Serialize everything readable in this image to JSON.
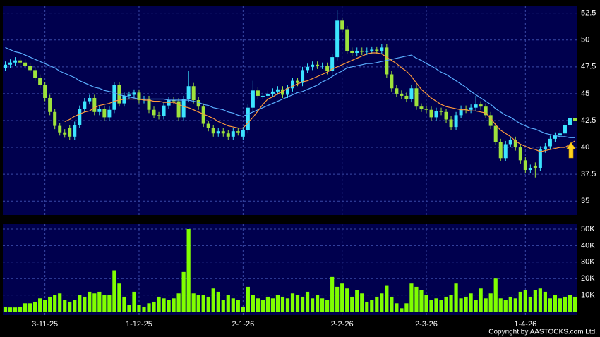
{
  "copyright": "Copyright by AASTOCKS.com Ltd.",
  "chart_data": [
    {
      "type": "candlestick",
      "categories": [
        null,
        null,
        null,
        null,
        null,
        null,
        null,
        null,
        "3-11-25",
        null,
        null,
        null,
        null,
        null,
        null,
        null,
        null,
        null,
        null,
        null,
        null,
        null,
        null,
        null,
        null,
        null,
        null,
        "1-12-25",
        null,
        null,
        null,
        null,
        null,
        null,
        null,
        null,
        null,
        null,
        null,
        null,
        null,
        null,
        null,
        null,
        null,
        null,
        null,
        null,
        "2-1-26",
        null,
        null,
        null,
        null,
        null,
        null,
        null,
        null,
        null,
        null,
        null,
        null,
        null,
        null,
        null,
        null,
        null,
        null,
        null,
        "2-2-26",
        null,
        null,
        null,
        null,
        null,
        null,
        null,
        null,
        null,
        null,
        null,
        null,
        null,
        null,
        null,
        null,
        "2-3-26",
        null,
        null,
        null,
        null,
        null,
        null,
        null,
        null,
        null,
        null,
        null,
        null,
        null,
        null,
        null,
        null,
        null,
        null,
        null,
        "1-4-26",
        null,
        null,
        null,
        null,
        null,
        null,
        null,
        null,
        null,
        null
      ],
      "open": [
        47.4,
        47.7,
        47.9,
        48.1,
        47.9,
        47.6,
        47.2,
        46.5,
        45.8,
        44.6,
        43.3,
        42.0,
        41.4,
        41.8,
        41.0,
        42.1,
        43.6,
        44.3,
        44.6,
        43.3,
        43.6,
        42.8,
        43.5,
        45.8,
        44.1,
        44.8,
        44.9,
        45.1,
        44.4,
        44.5,
        43.5,
        43.0,
        42.9,
        43.9,
        44.4,
        44.3,
        42.8,
        44.5,
        45.7,
        44.4,
        43.8,
        42.2,
        41.8,
        41.3,
        41.5,
        41.3,
        41.0,
        41.5,
        41.0,
        41.6,
        43.7,
        45.3,
        44.8,
        44.8,
        45.0,
        45.2,
        45.4,
        44.9,
        45.5,
        46.2,
        46.0,
        47.2,
        47.5,
        47.7,
        47.6,
        47.6,
        47.1,
        48.4,
        51.8,
        51.0,
        49.0,
        48.8,
        49.0,
        48.9,
        49.0,
        49.1,
        49.0,
        49.3,
        46.8,
        45.5,
        45.0,
        44.8,
        44.5,
        45.5,
        43.8,
        43.6,
        43.5,
        42.8,
        43.4,
        43.3,
        42.6,
        41.9,
        43.0,
        43.6,
        43.5,
        43.7,
        44.0,
        43.8,
        43.0,
        42.0,
        40.5,
        39.0,
        40.3,
        40.7,
        40.0,
        38.8,
        37.9,
        38.3,
        38.1,
        39.8,
        40.1,
        40.8,
        41.1,
        41.3,
        42.1,
        42.7
      ],
      "high": [
        48.0,
        48.2,
        48.4,
        48.4,
        48.2,
        47.9,
        47.5,
        46.8,
        46.1,
        44.9,
        43.6,
        42.3,
        41.7,
        42.1,
        42.4,
        43.9,
        44.6,
        44.9,
        44.9,
        43.9,
        43.9,
        43.8,
        46.1,
        46.1,
        45.1,
        45.2,
        45.4,
        45.4,
        44.8,
        44.8,
        43.8,
        43.3,
        44.2,
        44.7,
        44.7,
        44.6,
        44.8,
        47.1,
        46.0,
        44.7,
        44.1,
        42.5,
        42.1,
        41.8,
        41.8,
        41.6,
        41.8,
        41.8,
        41.9,
        44.0,
        46.2,
        45.6,
        45.1,
        45.3,
        45.5,
        45.7,
        45.7,
        45.8,
        46.5,
        46.5,
        47.5,
        47.8,
        48.0,
        48.0,
        47.9,
        47.9,
        48.7,
        52.8,
        52.1,
        51.3,
        49.3,
        49.3,
        49.3,
        49.3,
        49.4,
        49.4,
        49.6,
        49.6,
        47.1,
        45.8,
        45.3,
        45.1,
        45.8,
        45.8,
        44.1,
        43.9,
        43.8,
        43.7,
        43.7,
        43.6,
        42.9,
        43.3,
        43.9,
        43.9,
        44.0,
        44.8,
        44.3,
        44.1,
        43.3,
        42.3,
        40.8,
        40.6,
        41.0,
        41.0,
        40.3,
        39.1,
        38.4,
        38.6,
        40.1,
        40.4,
        41.1,
        41.4,
        41.6,
        42.4,
        43.0,
        43.0
      ],
      "low": [
        47.1,
        47.4,
        47.6,
        47.6,
        47.3,
        46.9,
        46.2,
        45.5,
        44.3,
        43.0,
        41.7,
        41.1,
        40.9,
        40.7,
        40.7,
        41.8,
        43.3,
        44.0,
        43.0,
        43.0,
        42.5,
        42.5,
        43.2,
        43.8,
        43.8,
        44.5,
        44.6,
        44.1,
        44.1,
        43.2,
        42.7,
        42.6,
        42.6,
        43.6,
        44.0,
        42.5,
        42.5,
        44.2,
        44.1,
        43.5,
        41.9,
        41.5,
        41.0,
        41.0,
        41.0,
        40.7,
        40.7,
        41.1,
        40.7,
        41.3,
        43.4,
        44.5,
        44.5,
        44.5,
        44.7,
        44.9,
        44.6,
        44.6,
        45.2,
        45.7,
        45.7,
        46.9,
        47.2,
        47.3,
        47.3,
        46.8,
        46.8,
        48.1,
        50.7,
        48.7,
        48.5,
        48.5,
        48.6,
        48.6,
        48.7,
        48.7,
        48.7,
        46.5,
        45.2,
        44.7,
        44.5,
        44.2,
        44.2,
        43.5,
        43.3,
        43.2,
        42.5,
        42.5,
        43.0,
        42.3,
        41.6,
        41.6,
        42.7,
        43.2,
        43.2,
        43.4,
        43.5,
        42.7,
        41.7,
        40.2,
        38.7,
        38.7,
        40.0,
        39.7,
        38.5,
        37.6,
        37.6,
        37.2,
        37.8,
        39.5,
        39.8,
        40.5,
        40.8,
        41.0,
        41.8,
        42.2
      ],
      "close": [
        47.7,
        47.9,
        48.1,
        47.9,
        47.6,
        47.2,
        46.5,
        45.8,
        44.6,
        43.3,
        42.0,
        41.4,
        41.2,
        41.0,
        42.1,
        43.6,
        44.3,
        44.6,
        43.3,
        43.6,
        42.8,
        43.5,
        45.8,
        44.1,
        44.8,
        44.9,
        45.1,
        44.4,
        44.5,
        43.5,
        43.0,
        42.9,
        43.9,
        44.4,
        44.3,
        42.8,
        44.5,
        45.7,
        44.4,
        43.8,
        42.2,
        41.8,
        41.3,
        41.5,
        41.3,
        41.0,
        41.5,
        41.4,
        41.6,
        43.7,
        45.3,
        44.8,
        44.8,
        45.0,
        45.2,
        45.4,
        44.9,
        45.5,
        46.2,
        46.0,
        47.2,
        47.5,
        47.7,
        47.6,
        47.6,
        47.1,
        48.4,
        51.8,
        51.0,
        49.0,
        48.8,
        49.0,
        48.9,
        49.0,
        49.1,
        49.0,
        49.3,
        46.8,
        45.5,
        45.0,
        44.8,
        44.5,
        45.5,
        43.8,
        43.6,
        43.5,
        42.8,
        43.4,
        43.3,
        42.6,
        41.9,
        43.0,
        43.6,
        43.5,
        43.7,
        44.0,
        43.8,
        43.0,
        42.0,
        40.5,
        39.0,
        40.3,
        40.7,
        40.0,
        38.8,
        37.9,
        38.1,
        38.1,
        39.8,
        40.1,
        40.8,
        41.1,
        41.3,
        42.1,
        42.7,
        42.5
      ],
      "up_color": "#3ce4ff",
      "down_color": "#9ee23c",
      "series": [
        {
          "color": "#5aaeff",
          "values": [
            49.3,
            49.1,
            48.9,
            48.8,
            48.6,
            48.4,
            48.2,
            48.0,
            47.8,
            47.6,
            47.4,
            47.1,
            46.9,
            46.7,
            46.5,
            46.2,
            46.0,
            45.8,
            45.6,
            45.5,
            45.3,
            45.2,
            45.1,
            44.9,
            44.8,
            44.7,
            44.6,
            44.5,
            44.5,
            44.5,
            44.5,
            44.5,
            44.5,
            44.4,
            44.4,
            44.4,
            44.4,
            44.4,
            44.3,
            44.2,
            44.0,
            43.9,
            43.7,
            43.6,
            43.5,
            43.3,
            43.2,
            43.0,
            42.9,
            43.1,
            43.3,
            43.5,
            43.7,
            43.9,
            44.1,
            44.3,
            44.5,
            44.7,
            44.9,
            45.1,
            45.2,
            45.4,
            45.6,
            45.8,
            46.1,
            46.3,
            46.6,
            46.9,
            47.1,
            47.4,
            47.5,
            47.6,
            47.7,
            47.8,
            47.8,
            47.9,
            48.0,
            48.1,
            48.2,
            48.3,
            48.4,
            48.5,
            48.6,
            48.3,
            48.1,
            47.8,
            47.6,
            47.3,
            47.0,
            46.8,
            46.5,
            46.2,
            45.9,
            45.6,
            45.2,
            44.9,
            44.6,
            44.3,
            44.0,
            43.6,
            43.3,
            43.0,
            42.8,
            42.5,
            42.2,
            42.0,
            41.8,
            41.7,
            41.5,
            41.3,
            41.2,
            41.1,
            41.0,
            41.0,
            40.9,
            40.9
          ]
        },
        {
          "color": "#ff9a3c",
          "values": [
            null,
            null,
            null,
            null,
            null,
            null,
            null,
            null,
            null,
            null,
            null,
            null,
            42.4,
            42.6,
            42.9,
            43.1,
            43.3,
            43.4,
            43.7,
            43.9,
            44.0,
            44.1,
            44.3,
            44.4,
            44.5,
            44.5,
            44.5,
            44.5,
            44.4,
            44.4,
            44.3,
            44.3,
            44.2,
            44.2,
            44.2,
            44.0,
            43.8,
            43.7,
            43.5,
            43.3,
            43.1,
            42.9,
            42.7,
            42.4,
            42.2,
            42.0,
            41.9,
            41.8,
            41.8,
            42.3,
            42.8,
            43.4,
            44.0,
            44.5,
            44.7,
            45.0,
            45.2,
            45.5,
            45.7,
            45.9,
            46.1,
            46.2,
            46.4,
            46.6,
            46.8,
            47.0,
            47.3,
            47.5,
            47.7,
            47.9,
            48.1,
            48.3,
            48.5,
            48.7,
            48.8,
            48.8,
            48.7,
            48.4,
            48.1,
            47.8,
            47.4,
            47.1,
            46.6,
            46.0,
            45.4,
            45.0,
            44.6,
            44.3,
            44.0,
            43.8,
            43.7,
            43.6,
            43.5,
            43.5,
            43.4,
            43.4,
            43.3,
            43.2,
            42.7,
            42.1,
            41.6,
            41.3,
            41.0,
            40.6,
            40.3,
            40.1,
            39.9,
            39.8,
            39.6,
            39.7,
            39.8,
            39.9,
            40.0,
            40.0,
            40.3,
            40.6
          ]
        }
      ],
      "ylim": [
        33.7,
        53.2
      ],
      "yticks": [
        35,
        37.5,
        40,
        42.5,
        45,
        47.5,
        50,
        52.5
      ],
      "grid": true
    },
    {
      "type": "bar",
      "values": [
        3,
        2.5,
        2.5,
        3,
        5,
        5,
        6,
        8,
        7,
        9,
        10,
        11,
        7,
        6,
        7,
        10,
        9,
        12,
        11,
        12,
        10,
        10,
        25,
        17,
        9,
        4,
        12,
        4,
        3,
        5,
        6,
        9,
        8,
        7,
        8,
        11,
        24,
        50,
        11,
        10,
        10,
        9,
        14,
        12,
        7,
        10,
        8,
        7,
        3,
        15,
        10,
        8,
        7,
        9,
        8,
        10,
        9,
        8,
        11,
        10,
        9,
        12,
        8,
        10,
        8,
        7,
        21,
        15,
        17,
        14,
        9,
        13,
        11,
        6,
        7,
        9,
        11,
        16,
        9,
        5,
        2,
        5,
        17,
        15,
        13,
        10,
        7,
        8,
        7,
        9,
        10,
        17,
        8,
        9,
        11,
        7,
        14,
        8,
        11,
        20,
        8,
        7,
        9,
        8,
        12,
        13,
        9,
        13,
        14,
        12,
        8,
        10,
        8,
        9,
        10,
        9
      ],
      "color": "#80ff00",
      "ylim": [
        0,
        53
      ],
      "yticks": [
        {
          "value": 10,
          "label": "10K"
        },
        {
          "value": 20,
          "label": "20K"
        },
        {
          "value": 30,
          "label": "30K"
        },
        {
          "value": 40,
          "label": "40K"
        },
        {
          "value": 50,
          "label": "50K"
        }
      ],
      "grid": true
    }
  ]
}
